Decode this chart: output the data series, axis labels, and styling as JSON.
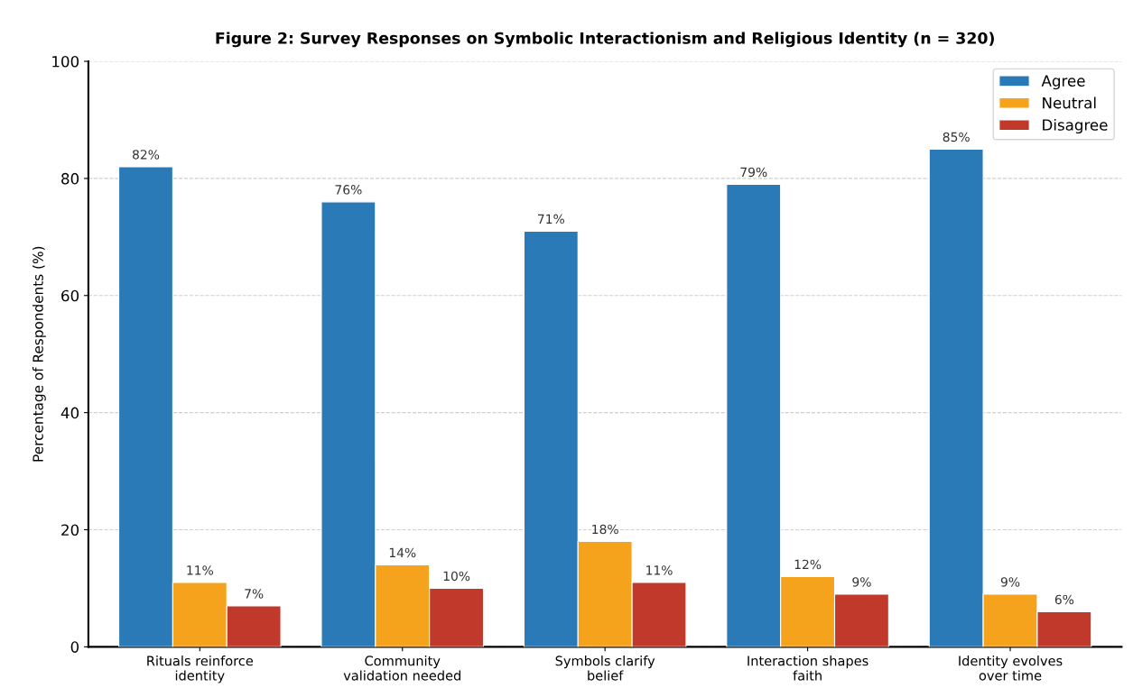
{
  "chart_data": {
    "type": "bar",
    "title": "Figure 2: Survey Responses on Symbolic Interactionism and Religious Identity (n = 320)",
    "ylabel": "Percentage of Respondents (%)",
    "categories": [
      "Rituals reinforce\nidentity",
      "Community\nvalidation needed",
      "Symbols clarify\nbelief",
      "Interaction shapes\nfaith",
      "Identity evolves\nover time"
    ],
    "series": [
      {
        "name": "Agree",
        "color": "#2a7ab8",
        "values": [
          82,
          76,
          71,
          79,
          85
        ],
        "value_labels": [
          "82%",
          "76%",
          "71%",
          "79%",
          "85%"
        ]
      },
      {
        "name": "Neutral",
        "color": "#f5a31c",
        "values": [
          11,
          14,
          18,
          12,
          9
        ],
        "value_labels": [
          "11%",
          "14%",
          "18%",
          "12%",
          "9%"
        ]
      },
      {
        "name": "Disagree",
        "color": "#c0392b",
        "values": [
          7,
          10,
          11,
          9,
          6
        ],
        "value_labels": [
          "7%",
          "10%",
          "11%",
          "9%",
          "6%"
        ]
      }
    ],
    "ylim": [
      0,
      100
    ],
    "yticks": [
      0,
      20,
      40,
      60,
      80,
      100
    ],
    "grid": "y",
    "legend": "top right"
  }
}
